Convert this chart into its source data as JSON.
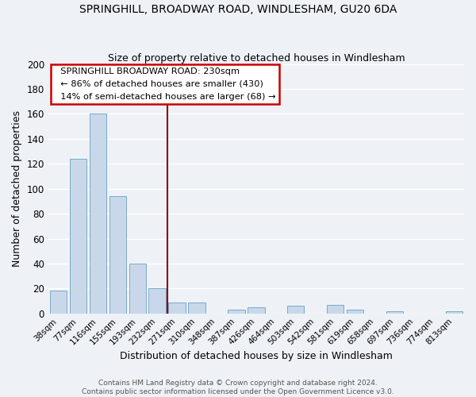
{
  "title": "SPRINGHILL, BROADWAY ROAD, WINDLESHAM, GU20 6DA",
  "subtitle": "Size of property relative to detached houses in Windlesham",
  "xlabel": "Distribution of detached houses by size in Windlesham",
  "ylabel": "Number of detached properties",
  "bar_labels": [
    "38sqm",
    "77sqm",
    "116sqm",
    "155sqm",
    "193sqm",
    "232sqm",
    "271sqm",
    "310sqm",
    "348sqm",
    "387sqm",
    "426sqm",
    "464sqm",
    "503sqm",
    "542sqm",
    "581sqm",
    "619sqm",
    "658sqm",
    "697sqm",
    "736sqm",
    "774sqm",
    "813sqm"
  ],
  "bar_values": [
    18,
    124,
    160,
    94,
    40,
    20,
    9,
    9,
    0,
    3,
    5,
    0,
    6,
    0,
    7,
    3,
    0,
    2,
    0,
    0,
    2
  ],
  "bar_color": "#c8d8ea",
  "bar_edge_color": "#7aaac8",
  "vline_color": "#8b0000",
  "ylim": [
    0,
    200
  ],
  "yticks": [
    0,
    20,
    40,
    60,
    80,
    100,
    120,
    140,
    160,
    180,
    200
  ],
  "annotation_title": "SPRINGHILL BROADWAY ROAD: 230sqm",
  "annotation_line1": "← 86% of detached houses are smaller (430)",
  "annotation_line2": "14% of semi-detached houses are larger (68) →",
  "footer_line1": "Contains HM Land Registry data © Crown copyright and database right 2024.",
  "footer_line2": "Contains public sector information licensed under the Open Government Licence v3.0.",
  "background_color": "#eef2f7",
  "grid_color": "#ffffff"
}
